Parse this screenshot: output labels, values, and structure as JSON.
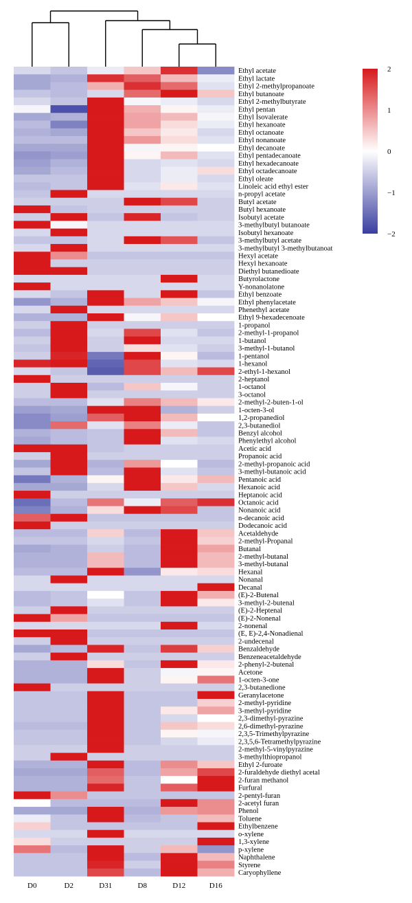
{
  "chart_data": {
    "type": "heatmap",
    "columns": [
      "D0",
      "D2",
      "D31",
      "D8",
      "D12",
      "D16"
    ],
    "rows": [
      "Ethyl acetate",
      "Ethyl lactate",
      "Ethyl 2-methylpropanoate",
      "Ethyl butanoate",
      "Ethyl 2-methylbutyrate",
      "Ethyl pentan",
      "Ethyl Isovalerate",
      "Ethyl hexanoate",
      "Ethyl octanoate",
      "Ethyl nonanoate",
      "Ethyl decanoate",
      "Ethyl pentadecanoate",
      "Ethyl hexadecanoate",
      "Ethyl octadecanoate",
      "Ethyl oleate",
      "Linoleic acid ethyl ester",
      "n-propyl acetate",
      "Butyl acetate",
      "Butyl hexanoate",
      "Isobutyl acetate",
      "3-methylbutyl butanoate",
      "Isobutyl hexanoate",
      "3-methylbutyl acetate",
      "3-methylbutyl 3-methylbutanoat",
      "Hexyl acetate",
      "Hexyl hexanoate",
      "Diethyl butanedioate",
      "Butyrolactone",
      "Y-nonanolatone",
      "Ethyl benzoate",
      "Ethyl phenylacetate",
      "Phenethyl acetate",
      "Ethyl 9-hexadecenoate",
      "1-propanol",
      "2-methyl-1-propanol",
      "1-butanol",
      "3-methyl-1-butanol",
      "1-pentanol",
      "1-hexanol",
      "2-ethyl-1-hexanol",
      "2-heptanol",
      "1-octanol",
      "3-octanol",
      "2-methyl-2-buten-1-ol",
      "1-octen-3-ol",
      "1,2-propanediol",
      "2,3-butanediol",
      "Benzyl alcohol",
      "Phenylethyl alcohol",
      "Acetic acid",
      "Propanoic acid",
      "2-methyl-propanoic acid",
      "3-methyl-butanoic acid",
      "Pentanoic acid",
      "Hexanoic acid",
      "Heptanoic acid",
      "Octanoic acid",
      "Nonanoic acid",
      "n-decanoic acid",
      "Dodecanoic acid",
      "Acetaldehyde",
      "2-methyl-Propanal",
      "Butanal",
      "2-methyl-butanal",
      "3-methyl-butanal",
      "Hexanal",
      "Nonanal",
      "Decanal",
      "(E)-2-Butenal",
      "3-methyl-2-butenal",
      "(E)-2-Heptenal",
      "(E)-2-Nonenal",
      "2-nonenal",
      "(E, E)-2,4-Nonadienal",
      "2-undecenal",
      "Benzaldehyde",
      "Benzeneacetaldehyde",
      "2-phenyl-2-butenal",
      "Acetone",
      "1-octen-3-one",
      "2,3-butanedione",
      "Geranylacetone",
      "2-methyl-pyridine",
      "3-methyl-pyridine",
      "2,3-dimethyl-pyrazine",
      "2,6-dimethyl-pyrazine",
      "2,3,5-Trimethylpyrazine",
      "2,3,5,6-Tetramethylpyrazine",
      "2-methyl-5-vinylpyrazine",
      "3-methylthiopropanol",
      "Ethyl 2-furoate",
      "2-furaldehyde diethyl acetal",
      "2-furan methanol",
      "Furfural",
      "2-pentyl-furan",
      "2-acetyl furan",
      "Phenol",
      "Toluene",
      "Ethylbenzene",
      "o-xylene",
      "1,3-xylene",
      "p-xylene",
      "Naphthalene",
      "Styrene",
      "Caryophyllene"
    ],
    "values": [
      [
        -0.4,
        -0.6,
        -0.2,
        0.5,
        1.8,
        -1.2
      ],
      [
        -0.9,
        -0.8,
        1.8,
        1.4,
        0.6,
        -0.2
      ],
      [
        -0.9,
        -0.7,
        0.7,
        1.8,
        1.3,
        -0.3
      ],
      [
        -0.6,
        -0.7,
        -0.4,
        1.3,
        2.0,
        0.5
      ],
      [
        -0.4,
        -0.6,
        2.0,
        -0.1,
        -0.2,
        -0.4
      ],
      [
        -0.1,
        -1.8,
        2.0,
        0.7,
        0.1,
        -0.2
      ],
      [
        -0.9,
        -0.8,
        2.0,
        0.8,
        0.6,
        -0.1
      ],
      [
        -0.7,
        -1.3,
        2.0,
        0.8,
        0.3,
        -0.2
      ],
      [
        -0.8,
        -0.9,
        2.0,
        0.5,
        0.2,
        -0.4
      ],
      [
        -0.7,
        -0.7,
        2.0,
        0.9,
        0.3,
        -0.3
      ],
      [
        -0.9,
        -0.9,
        2.0,
        -0.1,
        0.1,
        0.0
      ],
      [
        -1.1,
        -1.0,
        2.0,
        0.1,
        0.6,
        -0.3
      ],
      [
        -1.0,
        -0.8,
        2.0,
        -0.4,
        -0.3,
        -0.4
      ],
      [
        -0.9,
        -0.7,
        2.0,
        -0.4,
        -0.2,
        0.3
      ],
      [
        -0.6,
        -0.6,
        2.0,
        -0.4,
        -0.2,
        -0.4
      ],
      [
        -0.7,
        -0.6,
        2.0,
        -0.3,
        0.2,
        -0.3
      ],
      [
        -0.6,
        2.0,
        -0.4,
        -0.4,
        -0.4,
        -0.4
      ],
      [
        -0.5,
        -0.5,
        -0.5,
        2.0,
        1.6,
        -0.5
      ],
      [
        2.0,
        -0.6,
        -0.5,
        -0.5,
        -0.5,
        -0.5
      ],
      [
        -0.5,
        2.0,
        -0.6,
        1.9,
        -0.6,
        -0.5
      ],
      [
        2.0,
        -0.1,
        -0.4,
        -0.4,
        -0.4,
        -0.4
      ],
      [
        -0.4,
        2.0,
        -0.4,
        -0.4,
        -0.4,
        -0.4
      ],
      [
        -0.6,
        -0.6,
        -0.4,
        2.0,
        1.5,
        -0.6
      ],
      [
        -0.4,
        2.0,
        -0.4,
        -0.4,
        -0.4,
        -0.4
      ],
      [
        2.0,
        1.0,
        -0.6,
        -0.6,
        -0.6,
        -0.6
      ],
      [
        2.0,
        -0.5,
        -0.5,
        -0.5,
        -0.5,
        -0.5
      ],
      [
        2.0,
        2.0,
        -0.5,
        -0.5,
        -0.5,
        -0.5
      ],
      [
        -0.4,
        -0.4,
        -0.4,
        -0.4,
        2.0,
        -0.4
      ],
      [
        2.0,
        -0.4,
        -0.4,
        -0.4,
        -0.4,
        -0.4
      ],
      [
        -0.4,
        -0.6,
        2.0,
        -0.4,
        2.0,
        -0.6
      ],
      [
        -1.1,
        -0.8,
        2.0,
        0.8,
        0.5,
        -0.1
      ],
      [
        -0.4,
        2.0,
        -0.4,
        -0.4,
        -0.4,
        -0.4
      ],
      [
        -0.8,
        -0.8,
        2.0,
        -0.1,
        0.5,
        0.0
      ],
      [
        -0.5,
        2.0,
        -0.5,
        -0.5,
        -0.5,
        -0.5
      ],
      [
        -0.7,
        2.0,
        -0.4,
        1.6,
        -0.3,
        -0.6
      ],
      [
        -0.5,
        2.0,
        -0.5,
        2.0,
        -0.4,
        -0.4
      ],
      [
        -0.6,
        2.0,
        -0.5,
        0.3,
        -0.3,
        -0.5
      ],
      [
        -0.5,
        1.9,
        -1.4,
        2.0,
        0.1,
        -0.7
      ],
      [
        1.9,
        2.0,
        -1.6,
        1.6,
        -0.3,
        -0.4
      ],
      [
        -0.4,
        -0.6,
        -1.7,
        1.6,
        0.6,
        1.6
      ],
      [
        2.0,
        -0.5,
        -0.5,
        -0.5,
        -0.5,
        -0.5
      ],
      [
        -0.5,
        2.0,
        -0.7,
        0.5,
        -0.1,
        -0.5
      ],
      [
        -0.5,
        2.0,
        -0.5,
        -0.5,
        -0.5,
        -0.5
      ],
      [
        -0.7,
        -0.7,
        -0.3,
        1.1,
        0.6,
        0.2
      ],
      [
        -1.0,
        -0.9,
        2.0,
        2.0,
        -0.8,
        -0.5
      ],
      [
        -1.2,
        -1.0,
        1.4,
        2.0,
        0.6,
        0.0
      ],
      [
        -1.2,
        1.3,
        -0.3,
        1.1,
        -0.2,
        -0.6
      ],
      [
        -0.8,
        -0.7,
        -0.6,
        2.0,
        0.6,
        -0.6
      ],
      [
        -0.9,
        -0.7,
        -0.6,
        2.0,
        -0.3,
        -0.4
      ],
      [
        2.0,
        2.0,
        -0.6,
        -0.5,
        -0.5,
        -0.5
      ],
      [
        -0.5,
        2.0,
        -0.5,
        -0.5,
        -0.5,
        -0.5
      ],
      [
        -0.9,
        2.0,
        -0.8,
        0.9,
        0.0,
        -0.7
      ],
      [
        -0.6,
        2.0,
        -0.7,
        2.0,
        -0.3,
        -0.6
      ],
      [
        -1.4,
        -0.8,
        0.1,
        2.0,
        0.2,
        0.6
      ],
      [
        -0.9,
        -0.9,
        -0.4,
        2.0,
        0.5,
        -0.4
      ],
      [
        2.0,
        -0.5,
        -0.5,
        -0.5,
        -0.5,
        -0.5
      ],
      [
        -1.5,
        -0.7,
        1.2,
        -0.2,
        1.4,
        1.8
      ],
      [
        -1.3,
        -0.8,
        0.3,
        2.0,
        1.6,
        -0.6
      ],
      [
        1.4,
        2.0,
        -0.6,
        -0.6,
        -0.6,
        -0.6
      ],
      [
        2.0,
        -0.5,
        -0.5,
        -0.5,
        -0.5,
        -0.5
      ],
      [
        -0.7,
        -0.7,
        0.4,
        -0.7,
        2.0,
        0.5
      ],
      [
        -0.6,
        -0.6,
        -0.4,
        -0.6,
        2.0,
        0.4
      ],
      [
        -0.9,
        -0.8,
        -0.5,
        -0.7,
        2.0,
        0.8
      ],
      [
        -0.8,
        -0.8,
        0.6,
        -0.7,
        2.0,
        0.6
      ],
      [
        -0.8,
        -0.8,
        0.6,
        -0.7,
        2.0,
        0.6
      ],
      [
        -0.7,
        -0.7,
        2.0,
        -1.1,
        0.2,
        0.3
      ],
      [
        -0.4,
        2.0,
        -0.4,
        -0.4,
        -0.4,
        -0.4
      ],
      [
        -0.4,
        -0.4,
        -0.4,
        -0.4,
        -0.4,
        2.0
      ],
      [
        -0.7,
        -0.6,
        0.0,
        -0.6,
        2.0,
        0.7
      ],
      [
        -0.7,
        -0.6,
        -0.3,
        -0.6,
        2.0,
        0.2
      ],
      [
        -0.5,
        2.0,
        -0.5,
        -0.5,
        -0.5,
        -0.5
      ],
      [
        2.0,
        0.8,
        -0.6,
        -0.6,
        -0.6,
        -0.6
      ],
      [
        -0.4,
        -0.4,
        -0.4,
        -0.4,
        2.0,
        -0.4
      ],
      [
        2.0,
        2.0,
        -0.6,
        -0.6,
        -0.6,
        -0.6
      ],
      [
        -0.5,
        2.0,
        -0.5,
        -0.5,
        -0.5,
        -0.5
      ],
      [
        -0.9,
        -0.7,
        1.9,
        -0.6,
        1.7,
        0.4
      ],
      [
        -0.5,
        2.0,
        -0.5,
        -0.5,
        -0.5,
        -0.5
      ],
      [
        -0.8,
        -0.8,
        0.3,
        -0.6,
        2.0,
        0.2
      ],
      [
        -0.8,
        -0.8,
        2.0,
        -0.5,
        -0.1,
        0.1
      ],
      [
        -0.8,
        -0.8,
        2.0,
        -0.5,
        0.1,
        1.2
      ],
      [
        2.0,
        -0.5,
        -0.5,
        -0.5,
        -0.5,
        -0.5
      ],
      [
        -0.6,
        -0.6,
        2.0,
        -0.6,
        -0.6,
        2.0
      ],
      [
        -0.6,
        -0.6,
        2.0,
        -0.6,
        -0.6,
        0.4
      ],
      [
        -0.6,
        -0.6,
        2.0,
        -0.6,
        0.2,
        0.8
      ],
      [
        -0.6,
        -0.6,
        2.0,
        -0.6,
        -0.4,
        0.0
      ],
      [
        -0.7,
        -0.7,
        2.0,
        -0.6,
        0.5,
        0.3
      ],
      [
        -0.6,
        -0.6,
        2.0,
        -0.6,
        0.1,
        -0.1
      ],
      [
        -0.6,
        -0.6,
        2.0,
        -0.6,
        -0.4,
        -0.2
      ],
      [
        -0.5,
        -0.5,
        2.0,
        -0.5,
        -0.5,
        -0.5
      ],
      [
        -0.5,
        2.0,
        -0.5,
        -0.5,
        -0.5,
        -0.5
      ],
      [
        -0.8,
        -0.8,
        2.0,
        -0.7,
        1.0,
        0.5
      ],
      [
        -0.9,
        -0.9,
        1.4,
        -0.7,
        0.8,
        1.6
      ],
      [
        -0.8,
        -0.8,
        1.3,
        -0.6,
        0.0,
        2.0
      ],
      [
        -0.8,
        -0.8,
        1.9,
        -0.6,
        1.4,
        2.0
      ],
      [
        2.0,
        1.0,
        -0.6,
        -0.6,
        -0.6,
        -0.6
      ],
      [
        0.0,
        -0.7,
        -0.7,
        -0.7,
        2.0,
        1.0
      ],
      [
        -0.9,
        -0.9,
        2.0,
        -0.8,
        0.9,
        1.0
      ],
      [
        -0.2,
        -0.6,
        2.0,
        -0.7,
        -0.6,
        0.6
      ],
      [
        0.4,
        -0.6,
        -0.6,
        -0.6,
        -0.6,
        2.0
      ],
      [
        -0.4,
        -0.4,
        2.0,
        -0.4,
        -0.4,
        -0.4
      ],
      [
        0.3,
        -0.5,
        -0.5,
        -0.5,
        -0.5,
        2.0
      ],
      [
        1.2,
        -0.7,
        2.0,
        -0.5,
        0.6,
        -1.1
      ],
      [
        -0.6,
        -0.6,
        2.0,
        -0.7,
        2.0,
        0.6
      ],
      [
        -0.6,
        -0.6,
        1.9,
        -0.5,
        2.0,
        1.1
      ],
      [
        -0.6,
        -0.6,
        1.6,
        -0.7,
        2.0,
        0.7
      ]
    ],
    "colorbar": {
      "min": -2,
      "max": 2,
      "ticks": [
        2,
        1,
        0,
        -1,
        -2
      ],
      "tick_labels": [
        "2",
        "1",
        "0",
        "−1",
        "−2"
      ]
    },
    "colors": {
      "low": "#3a3ea0",
      "mid": "#ffffff",
      "high": "#d7191c"
    },
    "dendrogram": "column clustering: (D0,D2),(D31,(D8,(D12,D16)))"
  }
}
